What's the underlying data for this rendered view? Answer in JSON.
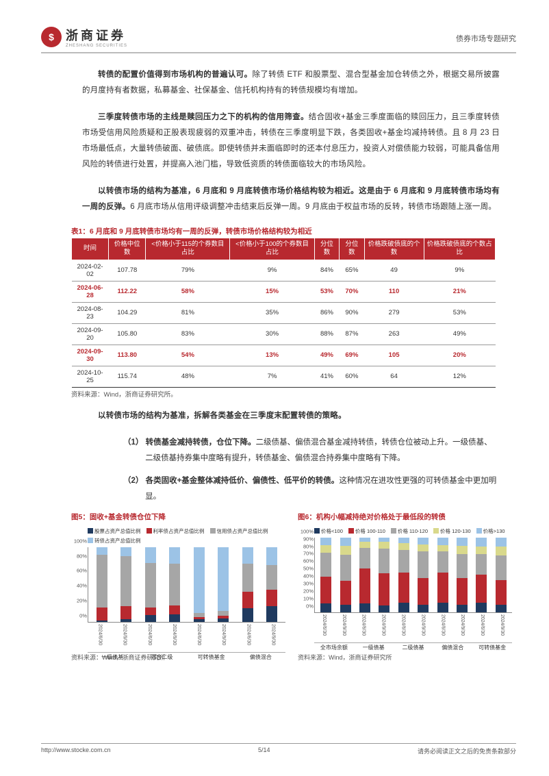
{
  "header": {
    "company_cn": "浙商证券",
    "company_en": "ZHESHANG SECURITIES",
    "right_text": "债券市场专题研究"
  },
  "paragraphs": {
    "p1_bold": "转债的配置价值得到市场机构的普遍认可。",
    "p1_rest": "除了转债 ETF 和股票型、混合型基金加仓转债之外，根据交易所披露的月度持有者数据，私募基金、社保基金、信托机构持有的转债规模均有增加。",
    "p2_bold": "三季度转债市场的主线是赎回压力之下的机构的信用筛查。",
    "p2_rest": "结合固收+基金三季度面临的赎回压力，且三季度转债市场受信用风险质疑和正股表现疲弱的双重冲击，转债在三季度明显下跌，各类固收+基金均减持转债。且 8 月 23 日市场最低点，大量转债破面、破债底。即使转债并未面临即时的还本付息压力，投资人对偿债能力较弱，可能具备信用风险的转债进行处置，并提高入池门槛，导致低资质的转债面临较大的市场风险。",
    "p3_bold": "以转债市场的结构为基准，6 月底和 9 月底转债市场价格结构较为相近。这是由于 6 月底和 9 月底转债市场均有一周的反弹。",
    "p3_rest": "6 月底市场从信用评级调整冲击结束后反弹一周。9 月底由于权益市场的反转，转债市场跟随上涨一周。",
    "p4": "以转债市场的结构为基准，拆解各类基金在三季度末配置转债的策略。",
    "li1_bold": "（1）  转债基金减持转债，仓位下降。",
    "li1_rest": "二级债基、偏债混合基金减持转债，转债仓位被动上升。一级债基、二级债基持券集中度略有提升，转债基金、偏债混合持券集中度略有下降。",
    "li2_bold": "（2）  各类固收+基金整体减持低价、偏债性、低平价的转债。",
    "li2_rest": "这种情况在进攻性更强的可转债基金中更加明显。"
  },
  "table": {
    "caption_prefix": "表1：",
    "caption_text": "6 月底和 9 月底转债市场均有一周的反弹，转债市场价格结构较为相近",
    "headers": [
      "时间",
      "价格中位数",
      "<价格小于115的个券数目占比",
      "<价格小于100的个券数目占比",
      "分位数",
      "分位数",
      "价格跌破债底的个数",
      "价格跌破债底的个数占比"
    ],
    "rows": [
      {
        "hl": false,
        "cells": [
          "2024-02-02",
          "107.78",
          "79%",
          "9%",
          "84%",
          "65%",
          "49",
          "9%"
        ]
      },
      {
        "hl": true,
        "cells": [
          "2024-06-28",
          "112.22",
          "58%",
          "15%",
          "53%",
          "70%",
          "110",
          "21%"
        ]
      },
      {
        "hl": false,
        "cells": [
          "2024-08-23",
          "104.29",
          "81%",
          "35%",
          "86%",
          "90%",
          "279",
          "53%"
        ]
      },
      {
        "hl": false,
        "cells": [
          "2024-09-20",
          "105.80",
          "83%",
          "30%",
          "88%",
          "87%",
          "263",
          "49%"
        ]
      },
      {
        "hl": true,
        "cells": [
          "2024-09-30",
          "113.80",
          "54%",
          "13%",
          "49%",
          "69%",
          "105",
          "20%"
        ]
      },
      {
        "hl": false,
        "cells": [
          "2024-10-25",
          "115.74",
          "48%",
          "7%",
          "41%",
          "60%",
          "64",
          "12%"
        ]
      }
    ],
    "source": "资料来源：Wind，浙商证券研究所。"
  },
  "chart5": {
    "title_prefix": "图5：",
    "title_text": "固收+基金转债仓位下降",
    "type": "stacked-bar",
    "legend": [
      {
        "label": "股票占资产总值比例",
        "color": "#1f3a5f"
      },
      {
        "label": "利率债占资产总值比例",
        "color": "#b8292f"
      },
      {
        "label": "信用债占资产总值比例",
        "color": "#a6a6a6"
      },
      {
        "label": "转债占资产总值比例",
        "color": "#9cc3e6"
      }
    ],
    "ylim": [
      0,
      100
    ],
    "ytick_step": 20,
    "yticks": [
      "0%",
      "20%",
      "40%",
      "60%",
      "80%",
      "100%"
    ],
    "xlabels": [
      "2024/6/30",
      "2024/9/30",
      "2024/6/30",
      "2024/9/30",
      "2024/6/30",
      "2024/9/30",
      "2024/6/30",
      "2024/9/30"
    ],
    "groups": [
      "一级债基",
      "混合二级",
      "可转债基金",
      "偏债混合"
    ],
    "group_sizes": [
      2,
      2,
      2,
      2
    ],
    "bars": [
      [
        2,
        17,
        71,
        10
      ],
      [
        3,
        18,
        67,
        12
      ],
      [
        9,
        10,
        60,
        21
      ],
      [
        10,
        12,
        56,
        22
      ],
      [
        3,
        3,
        6,
        88
      ],
      [
        4,
        4,
        6,
        86
      ],
      [
        18,
        22,
        38,
        22
      ],
      [
        21,
        22,
        33,
        24
      ]
    ],
    "colors": [
      "#1f3a5f",
      "#b8292f",
      "#a6a6a6",
      "#9cc3e6"
    ],
    "source": "资料来源：Wind，浙商证券研究所"
  },
  "chart6": {
    "title_prefix": "图6：",
    "title_text": "机构小幅减持绝对价格处于最低段的转债",
    "type": "stacked-bar",
    "legend": [
      {
        "label": "价格<100",
        "color": "#1f3a5f"
      },
      {
        "label": "价格 100-110",
        "color": "#b8292f"
      },
      {
        "label": "价格 110-120",
        "color": "#a6a6a6"
      },
      {
        "label": "价格 120-130",
        "color": "#d9d98c"
      },
      {
        "label": "价格>130",
        "color": "#9cc3e6"
      }
    ],
    "ylim": [
      0,
      100
    ],
    "ytick_step": 10,
    "yticks": [
      "0%",
      "10%",
      "20%",
      "30%",
      "40%",
      "50%",
      "60%",
      "70%",
      "80%",
      "90%",
      "100%"
    ],
    "xlabels": [
      "2024/6/30",
      "2024/9/30",
      "2024/6/30",
      "2024/9/30",
      "2024/6/30",
      "2024/9/30",
      "2024/6/30",
      "2024/9/30",
      "2024/6/30",
      "2024/9/30"
    ],
    "groups": [
      "全市场余额",
      "一级债基",
      "二级债基",
      "偏债混合",
      "可转债基金"
    ],
    "group_sizes": [
      2,
      2,
      2,
      2,
      2
    ],
    "bars": [
      [
        12,
        35,
        33,
        10,
        10
      ],
      [
        10,
        32,
        35,
        12,
        11
      ],
      [
        12,
        46,
        28,
        8,
        6
      ],
      [
        9,
        43,
        33,
        9,
        6
      ],
      [
        13,
        40,
        30,
        9,
        8
      ],
      [
        10,
        36,
        35,
        10,
        9
      ],
      [
        13,
        40,
        28,
        9,
        10
      ],
      [
        10,
        36,
        32,
        11,
        11
      ],
      [
        13,
        37,
        28,
        10,
        12
      ],
      [
        10,
        33,
        33,
        12,
        12
      ]
    ],
    "colors": [
      "#1f3a5f",
      "#b8292f",
      "#a6a6a6",
      "#d9d98c",
      "#9cc3e6"
    ],
    "source": "资料来源：Wind，浙商证券研究所"
  },
  "footer": {
    "url": "http://www.stocke.com.cn",
    "page": "5/14",
    "disclaimer": "请务必阅读正文之后的免责条款部分"
  }
}
